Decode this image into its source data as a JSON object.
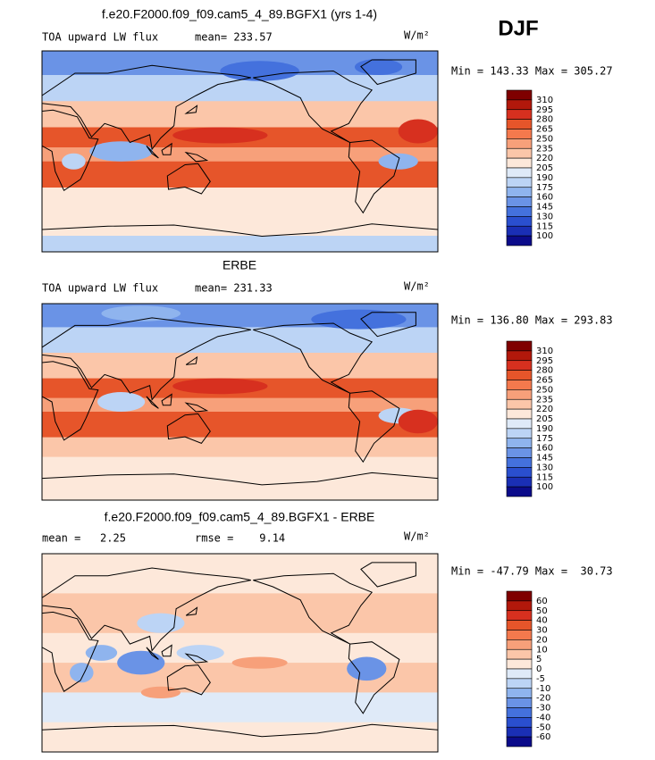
{
  "header": {
    "season": "DJF"
  },
  "panels": [
    {
      "title": "f.e20.F2000.f09_f09.cam5_4_89.BGFX1 (yrs 1-4)",
      "left_label": "TOA upward LW flux",
      "stat_label": "mean= 233.57",
      "units": "W/m²",
      "range_label": "Min = 143.33 Max = 305.27",
      "colorbar": {
        "levels": [
          310,
          295,
          280,
          265,
          250,
          235,
          220,
          205,
          190,
          175,
          160,
          145,
          130,
          115,
          100
        ],
        "colors": [
          "#7f0000",
          "#b2180b",
          "#d7301f",
          "#e6552a",
          "#f4794d",
          "#f7a07a",
          "#fbc6a9",
          "#fde8da",
          "#dfeaf8",
          "#bcd4f5",
          "#8fb4ee",
          "#6a93e6",
          "#4471dd",
          "#2a4fcf",
          "#1a2fb5",
          "#0b0b8a"
        ]
      }
    },
    {
      "title": "ERBE",
      "left_label": "TOA upward LW flux",
      "stat_label": "mean= 231.33",
      "units": "W/m²",
      "range_label": "Min = 136.80 Max = 293.83",
      "colorbar": {
        "levels": [
          310,
          295,
          280,
          265,
          250,
          235,
          220,
          205,
          190,
          175,
          160,
          145,
          130,
          115,
          100
        ],
        "colors": [
          "#7f0000",
          "#b2180b",
          "#d7301f",
          "#e6552a",
          "#f4794d",
          "#f7a07a",
          "#fbc6a9",
          "#fde8da",
          "#dfeaf8",
          "#bcd4f5",
          "#8fb4ee",
          "#6a93e6",
          "#4471dd",
          "#2a4fcf",
          "#1a2fb5",
          "#0b0b8a"
        ]
      }
    },
    {
      "title": "f.e20.F2000.f09_f09.cam5_4_89.BGFX1 - ERBE",
      "left_label": "mean =   2.25",
      "stat_label": "rmse =    9.14",
      "units": "W/m²",
      "range_label": "Min = -47.79 Max =  30.73",
      "colorbar": {
        "levels": [
          60,
          50,
          40,
          30,
          20,
          10,
          5,
          0,
          -5,
          -10,
          -20,
          -30,
          -40,
          -50,
          -60
        ],
        "colors": [
          "#7f0000",
          "#b2180b",
          "#d7301f",
          "#e6552a",
          "#f4794d",
          "#f7a07a",
          "#fbc6a9",
          "#fde8da",
          "#dfeaf8",
          "#bcd4f5",
          "#8fb4ee",
          "#6a93e6",
          "#4471dd",
          "#2a4fcf",
          "#1a2fb5",
          "#0b0b8a"
        ]
      }
    }
  ]
}
